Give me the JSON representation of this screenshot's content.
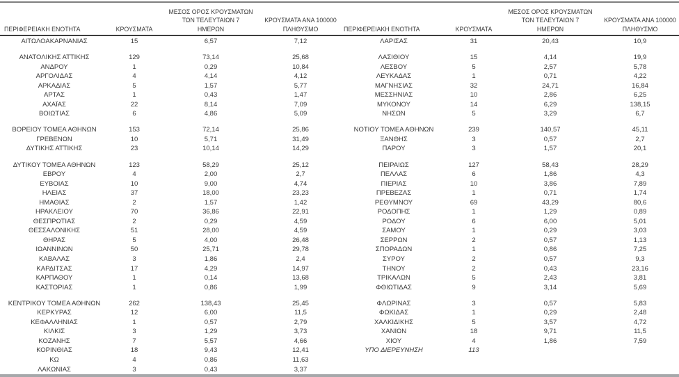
{
  "table": {
    "columns": {
      "region": "ΠΕΡΙΦΕΡΕΙΑΚΗ ΕΝΟΤΗΤΑ",
      "cases": "ΚΡΟΥΣΜΑΤΑ",
      "avg7_line1": "ΜΕΣΟΣ ΟΡΟΣ ΚΡΟΥΣΜΑΤΩΝ",
      "avg7_line2": "ΤΩΝ ΤΕΛΕΥΤΑΙΩΝ 7",
      "avg7_line3": "ΗΜΕΡΩΝ",
      "per100k_line1": "ΚΡΟΥΣΜΑΤΑ ΑΝΑ 100000",
      "per100k_line2": "ΠΛΗΘΥΣΜΟ"
    },
    "left_sections": [
      [
        {
          "region": "ΑΙΤΩΛΟΑΚΑΡΝΑΝΙΑΣ",
          "cases": "15",
          "avg7": "6,57",
          "per100k": "7,12"
        }
      ],
      [
        {
          "region": "ΑΝΑΤΟΛΙΚΗΣ ΑΤΤΙΚΗΣ",
          "cases": "129",
          "avg7": "73,14",
          "per100k": "25,68"
        },
        {
          "region": "ΑΝΔΡΟΥ",
          "cases": "1",
          "avg7": "0,29",
          "per100k": "10,84"
        },
        {
          "region": "ΑΡΓΟΛΙΔΑΣ",
          "cases": "4",
          "avg7": "4,14",
          "per100k": "4,12"
        },
        {
          "region": "ΑΡΚΑΔΙΑΣ",
          "cases": "5",
          "avg7": "1,57",
          "per100k": "5,77"
        },
        {
          "region": "ΑΡΤΑΣ",
          "cases": "1",
          "avg7": "0,43",
          "per100k": "1,47"
        },
        {
          "region": "ΑΧΑΪΑΣ",
          "cases": "22",
          "avg7": "8,14",
          "per100k": "7,09"
        },
        {
          "region": "ΒΟΙΩΤΙΑΣ",
          "cases": "6",
          "avg7": "4,86",
          "per100k": "5,09"
        }
      ],
      [
        {
          "region": "ΒΟΡΕΙΟΥ ΤΟΜΕΑ ΑΘΗΝΩΝ",
          "cases": "153",
          "avg7": "72,14",
          "per100k": "25,86"
        },
        {
          "region": "ΓΡΕΒΕΝΩΝ",
          "cases": "10",
          "avg7": "5,71",
          "per100k": "31,49"
        },
        {
          "region": "ΔΥΤΙΚΗΣ ΑΤΤΙΚΗΣ",
          "cases": "23",
          "avg7": "10,14",
          "per100k": "14,29"
        }
      ],
      [
        {
          "region": "ΔΥΤΙΚΟΥ ΤΟΜΕΑ ΑΘΗΝΩΝ",
          "cases": "123",
          "avg7": "58,29",
          "per100k": "25,12"
        },
        {
          "region": "ΕΒΡΟΥ",
          "cases": "4",
          "avg7": "2,00",
          "per100k": "2,7"
        },
        {
          "region": "ΕΥΒΟΙΑΣ",
          "cases": "10",
          "avg7": "9,00",
          "per100k": "4,74"
        },
        {
          "region": "ΗΛΕΙΑΣ",
          "cases": "37",
          "avg7": "18,00",
          "per100k": "23,23"
        },
        {
          "region": "ΗΜΑΘΙΑΣ",
          "cases": "2",
          "avg7": "1,57",
          "per100k": "1,42"
        },
        {
          "region": "ΗΡΑΚΛΕΙΟΥ",
          "cases": "70",
          "avg7": "36,86",
          "per100k": "22,91"
        },
        {
          "region": "ΘΕΣΠΡΩΤΙΑΣ",
          "cases": "2",
          "avg7": "0,29",
          "per100k": "4,59"
        },
        {
          "region": "ΘΕΣΣΑΛΟΝΙΚΗΣ",
          "cases": "51",
          "avg7": "28,00",
          "per100k": "4,59"
        },
        {
          "region": "ΘΗΡΑΣ",
          "cases": "5",
          "avg7": "4,00",
          "per100k": "26,48"
        },
        {
          "region": "ΙΩΑΝΝΙΝΩΝ",
          "cases": "50",
          "avg7": "25,71",
          "per100k": "29,78"
        },
        {
          "region": "ΚΑΒΑΛΑΣ",
          "cases": "3",
          "avg7": "1,86",
          "per100k": "2,4"
        },
        {
          "region": "ΚΑΡΔΙΤΣΑΣ",
          "cases": "17",
          "avg7": "4,29",
          "per100k": "14,97"
        },
        {
          "region": "ΚΑΡΠΑΘΟΥ",
          "cases": "1",
          "avg7": "0,14",
          "per100k": "13,68"
        },
        {
          "region": "ΚΑΣΤΟΡΙΑΣ",
          "cases": "1",
          "avg7": "0,86",
          "per100k": "1,99"
        }
      ],
      [
        {
          "region": "ΚΕΝΤΡΙΚΟΥ ΤΟΜΕΑ ΑΘΗΝΩΝ",
          "cases": "262",
          "avg7": "138,43",
          "per100k": "25,45"
        },
        {
          "region": "ΚΕΡΚΥΡΑΣ",
          "cases": "12",
          "avg7": "6,00",
          "per100k": "11,5"
        },
        {
          "region": "ΚΕΦΑΛΛΗΝΙΑΣ",
          "cases": "1",
          "avg7": "0,57",
          "per100k": "2,79"
        },
        {
          "region": "ΚΙΛΚΙΣ",
          "cases": "3",
          "avg7": "1,29",
          "per100k": "3,73"
        },
        {
          "region": "ΚΟΖΑΝΗΣ",
          "cases": "7",
          "avg7": "5,57",
          "per100k": "4,66"
        },
        {
          "region": "ΚΟΡΙΝΘΙΑΣ",
          "cases": "18",
          "avg7": "9,43",
          "per100k": "12,41"
        },
        {
          "region": "ΚΩ",
          "cases": "4",
          "avg7": "0,86",
          "per100k": "11,63"
        },
        {
          "region": "ΛΑΚΩΝΙΑΣ",
          "cases": "3",
          "avg7": "0,43",
          "per100k": "3,37"
        }
      ]
    ],
    "right_sections": [
      [
        {
          "region": "ΛΑΡΙΣΑΣ",
          "cases": "31",
          "avg7": "20,43",
          "per100k": "10,9"
        }
      ],
      [
        {
          "region": "ΛΑΣΙΘΙΟΥ",
          "cases": "15",
          "avg7": "4,14",
          "per100k": "19,9"
        },
        {
          "region": "ΛΕΣΒΟΥ",
          "cases": "5",
          "avg7": "2,57",
          "per100k": "5,78"
        },
        {
          "region": "ΛΕΥΚΑΔΑΣ",
          "cases": "1",
          "avg7": "0,71",
          "per100k": "4,22"
        },
        {
          "region": "ΜΑΓΝΗΣΙΑΣ",
          "cases": "32",
          "avg7": "24,71",
          "per100k": "16,84"
        },
        {
          "region": "ΜΕΣΣΗΝΙΑΣ",
          "cases": "10",
          "avg7": "2,86",
          "per100k": "6,25"
        },
        {
          "region": "ΜΥΚΟΝΟΥ",
          "cases": "14",
          "avg7": "6,29",
          "per100k": "138,15"
        },
        {
          "region": "ΝΗΣΩΝ",
          "cases": "5",
          "avg7": "3,29",
          "per100k": "6,7"
        }
      ],
      [
        {
          "region": "ΝΟΤΙΟΥ ΤΟΜΕΑ ΑΘΗΝΩΝ",
          "cases": "239",
          "avg7": "140,57",
          "per100k": "45,11"
        },
        {
          "region": "ΞΑΝΘΗΣ",
          "cases": "3",
          "avg7": "0,57",
          "per100k": "2,7"
        },
        {
          "region": "ΠΑΡΟΥ",
          "cases": "3",
          "avg7": "1,57",
          "per100k": "20,1"
        }
      ],
      [
        {
          "region": "ΠΕΙΡΑΙΩΣ",
          "cases": "127",
          "avg7": "58,43",
          "per100k": "28,29"
        },
        {
          "region": "ΠΕΛΛΑΣ",
          "cases": "6",
          "avg7": "1,86",
          "per100k": "4,3"
        },
        {
          "region": "ΠΙΕΡΙΑΣ",
          "cases": "10",
          "avg7": "3,86",
          "per100k": "7,89"
        },
        {
          "region": "ΠΡΕΒΕΖΑΣ",
          "cases": "1",
          "avg7": "0,71",
          "per100k": "1,74"
        },
        {
          "region": "ΡΕΘΥΜΝΟΥ",
          "cases": "69",
          "avg7": "43,29",
          "per100k": "80,6"
        },
        {
          "region": "ΡΟΔΟΠΗΣ",
          "cases": "1",
          "avg7": "1,29",
          "per100k": "0,89"
        },
        {
          "region": "ΡΟΔΟΥ",
          "cases": "6",
          "avg7": "6,00",
          "per100k": "5,01"
        },
        {
          "region": "ΣΑΜΟΥ",
          "cases": "1",
          "avg7": "0,29",
          "per100k": "3,03"
        },
        {
          "region": "ΣΕΡΡΩΝ",
          "cases": "2",
          "avg7": "0,57",
          "per100k": "1,13"
        },
        {
          "region": "ΣΠΟΡΑΔΩΝ",
          "cases": "1",
          "avg7": "0,86",
          "per100k": "7,25"
        },
        {
          "region": "ΣΥΡΟΥ",
          "cases": "2",
          "avg7": "0,57",
          "per100k": "9,3"
        },
        {
          "region": "ΤΗΝΟΥ",
          "cases": "2",
          "avg7": "0,43",
          "per100k": "23,16"
        },
        {
          "region": "ΤΡΙΚΑΛΩΝ",
          "cases": "5",
          "avg7": "2,43",
          "per100k": "3,81"
        },
        {
          "region": "ΦΘΙΩΤΙΔΑΣ",
          "cases": "9",
          "avg7": "3,14",
          "per100k": "5,69"
        }
      ],
      [
        {
          "region": "ΦΛΩΡΙΝΑΣ",
          "cases": "3",
          "avg7": "0,57",
          "per100k": "5,83"
        },
        {
          "region": "ΦΩΚΙΔΑΣ",
          "cases": "1",
          "avg7": "0,29",
          "per100k": "2,48"
        },
        {
          "region": "ΧΑΛΚΙΔΙΚΗΣ",
          "cases": "5",
          "avg7": "3,57",
          "per100k": "4,72"
        },
        {
          "region": "ΧΑΝΙΩΝ",
          "cases": "18",
          "avg7": "9,71",
          "per100k": "11,5"
        },
        {
          "region": "ΧΙΟΥ",
          "cases": "4",
          "avg7": "1,86",
          "per100k": "7,59"
        },
        {
          "region": "ΥΠΟ ΔΙΕΡΕΥΝΗΣΗ",
          "cases": "113",
          "avg7": "",
          "per100k": "",
          "style": "italic"
        }
      ]
    ]
  },
  "colors": {
    "top_rule": "#7f7f7f",
    "header_rule": "#3d3d3d",
    "bottom_rule": "#a6a8aa",
    "text": "#3a3a3a",
    "background": "#ffffff"
  }
}
